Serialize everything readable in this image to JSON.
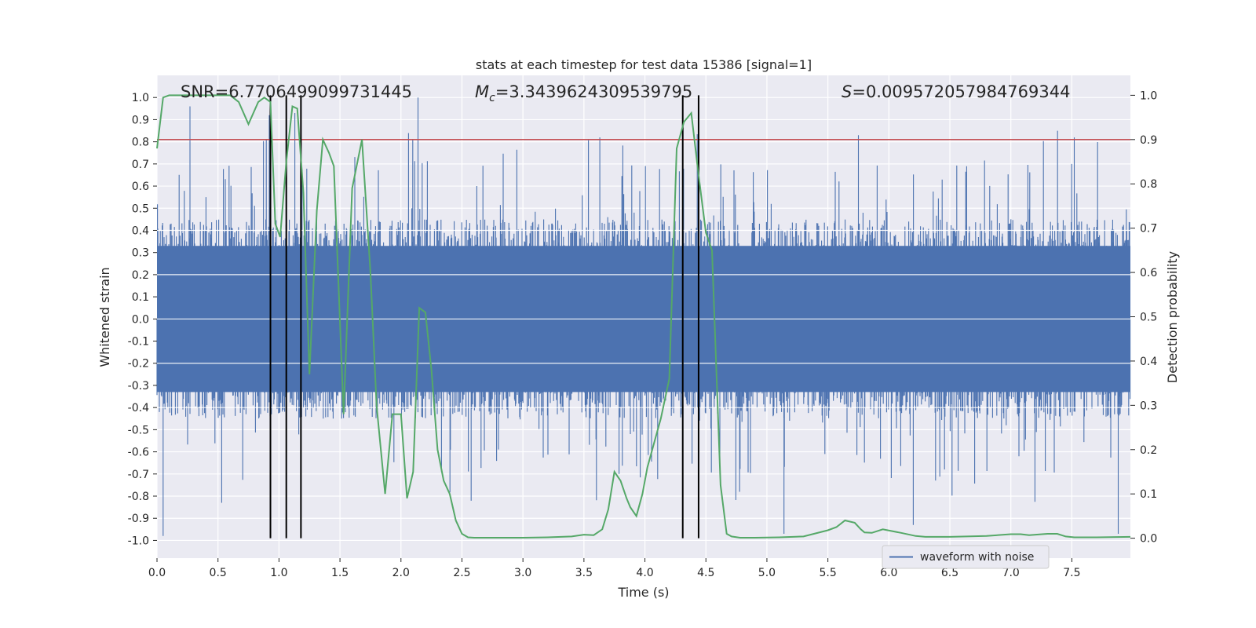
{
  "chart_data": {
    "type": "line",
    "title": "stats at each timestep for test data 15386 [signal=1]",
    "xlabel": "Time (s)",
    "ylabel": "Whitened strain",
    "y2label": "Detection probability",
    "xlim": [
      0.0,
      7.98
    ],
    "ylim": [
      -1.08,
      1.1
    ],
    "y2lim": [
      -0.045,
      1.045
    ],
    "xticks": [
      "0.0",
      "0.5",
      "1.0",
      "1.5",
      "2.0",
      "2.5",
      "3.0",
      "3.5",
      "4.0",
      "4.5",
      "5.0",
      "5.5",
      "6.0",
      "6.5",
      "7.0",
      "7.5"
    ],
    "yticks": [
      "1.0",
      "0.9",
      "0.8",
      "0.7",
      "0.6",
      "0.5",
      "0.4",
      "0.3",
      "0.2",
      "0.1",
      "0.0",
      "-0.1",
      "-0.2",
      "-0.3",
      "-0.4",
      "-0.5",
      "-0.6",
      "-0.7",
      "-0.8",
      "-0.9",
      "-1.0"
    ],
    "y2ticks": [
      "1.0",
      "0.9",
      "0.8",
      "0.7",
      "0.6",
      "0.5",
      "0.4",
      "0.3",
      "0.2",
      "0.1",
      "0.0"
    ],
    "threshold": 0.9,
    "colors": {
      "waveform": "#4c72b0",
      "probability": "#55a868",
      "threshold": "#c44e52",
      "markers": "#000000",
      "plot_bg": "#eaeaf2",
      "grid": "#ffffff"
    },
    "annotations": {
      "snr": "SNR=6.7706499099731445",
      "mc_symbol": "M",
      "mc_sub": "c",
      "mc_value": "=3.3439624309539795",
      "s_symbol": "S",
      "s_value": "=0.009572057984769344"
    },
    "legend": [
      "waveform with noise"
    ],
    "marker_times": [
      0.93,
      1.06,
      1.18,
      4.31,
      4.44
    ],
    "series": [
      {
        "name": "detection probability",
        "x": [
          0.0,
          0.05,
          0.1,
          0.2,
          0.3,
          0.4,
          0.5,
          0.6,
          0.67,
          0.75,
          0.83,
          0.88,
          0.93,
          0.97,
          1.01,
          1.06,
          1.11,
          1.15,
          1.2,
          1.25,
          1.31,
          1.36,
          1.41,
          1.45,
          1.53,
          1.6,
          1.68,
          1.75,
          1.8,
          1.87,
          1.93,
          2.0,
          2.05,
          2.1,
          2.15,
          2.2,
          2.25,
          2.3,
          2.35,
          2.4,
          2.45,
          2.5,
          2.55,
          2.6,
          2.7,
          2.8,
          3.0,
          3.2,
          3.4,
          3.5,
          3.58,
          3.65,
          3.7,
          3.75,
          3.8,
          3.85,
          3.88,
          3.93,
          3.98,
          4.02,
          4.08,
          4.13,
          4.2,
          4.26,
          4.32,
          4.38,
          4.44,
          4.5,
          4.55,
          4.62,
          4.67,
          4.71,
          4.78,
          4.9,
          5.1,
          5.3,
          5.5,
          5.57,
          5.64,
          5.72,
          5.77,
          5.8,
          5.86,
          5.95,
          6.1,
          6.22,
          6.3,
          6.5,
          6.8,
          7.0,
          7.08,
          7.15,
          7.3,
          7.38,
          7.45,
          7.52,
          7.7,
          7.98
        ],
        "values": [
          0.88,
          0.995,
          1.0,
          1.0,
          1.0,
          1.0,
          1.0,
          1.0,
          0.985,
          0.935,
          0.985,
          0.995,
          0.985,
          0.71,
          0.68,
          0.85,
          0.975,
          0.97,
          0.78,
          0.37,
          0.74,
          0.9,
          0.87,
          0.84,
          0.28,
          0.79,
          0.9,
          0.6,
          0.3,
          0.1,
          0.28,
          0.28,
          0.09,
          0.15,
          0.52,
          0.51,
          0.38,
          0.2,
          0.13,
          0.1,
          0.04,
          0.01,
          0.002,
          0.001,
          0.001,
          0.001,
          0.001,
          0.002,
          0.004,
          0.008,
          0.007,
          0.02,
          0.065,
          0.15,
          0.13,
          0.09,
          0.07,
          0.05,
          0.1,
          0.16,
          0.22,
          0.27,
          0.36,
          0.88,
          0.94,
          0.96,
          0.82,
          0.69,
          0.65,
          0.12,
          0.01,
          0.004,
          0.001,
          0.001,
          0.002,
          0.004,
          0.018,
          0.025,
          0.04,
          0.035,
          0.02,
          0.013,
          0.012,
          0.02,
          0.012,
          0.005,
          0.003,
          0.003,
          0.005,
          0.009,
          0.009,
          0.007,
          0.01,
          0.01,
          0.004,
          0.002,
          0.002,
          0.003
        ]
      },
      {
        "name": "waveform with noise",
        "description": "dense whitened noise, mostly within about ±0.5 strain, with peaks near ±0.95",
        "typical_amplitude": 0.45,
        "peak_times": [
          0.05,
          0.27,
          0.53,
          0.92,
          1.13,
          2.14,
          3.63,
          4.31,
          5.14,
          5.75,
          6.2,
          7.52,
          7.88
        ],
        "peak_values": [
          -0.98,
          0.96,
          -0.83,
          0.92,
          0.93,
          1.0,
          0.82,
          -0.93,
          -0.97,
          0.83,
          -0.93,
          0.82,
          -0.97
        ]
      }
    ]
  }
}
